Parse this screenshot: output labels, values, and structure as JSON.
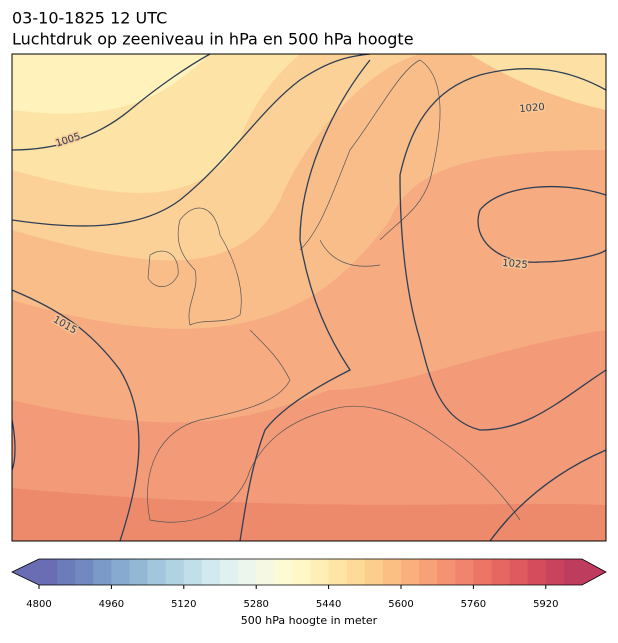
{
  "header": {
    "title": "03-10-1825 12 UTC",
    "subtitle": "Luchtdruk op zeeniveau in hPa en 500 hPa hoogte"
  },
  "map": {
    "contour_labels": [
      1005,
      1015,
      1020,
      1025
    ]
  },
  "colorbar": {
    "label": "500 hPa hoogte in meter",
    "lim": [
      4800,
      6000
    ],
    "ticks": [
      4800,
      4960,
      5120,
      5280,
      5440,
      5600,
      5760,
      5920
    ],
    "colors": [
      "#6a6db3",
      "#6c7bba",
      "#7189c0",
      "#7b9ac8",
      "#86aad0",
      "#93b8d6",
      "#a2c7dc",
      "#b0d3e2",
      "#c1dfe9",
      "#d1e9ef",
      "#e0f1f0",
      "#ecf6ec",
      "#f5f9e2",
      "#fcfbd3",
      "#fff7c5",
      "#ffefb6",
      "#fee5a6",
      "#fdda99",
      "#fccd8d",
      "#fbbf84",
      "#f9b07c",
      "#f7a176",
      "#f49271",
      "#f1846c",
      "#ec7566",
      "#e66762",
      "#de5a5f",
      "#d54c5d",
      "#ca435d",
      "#be3c5e"
    ]
  }
}
